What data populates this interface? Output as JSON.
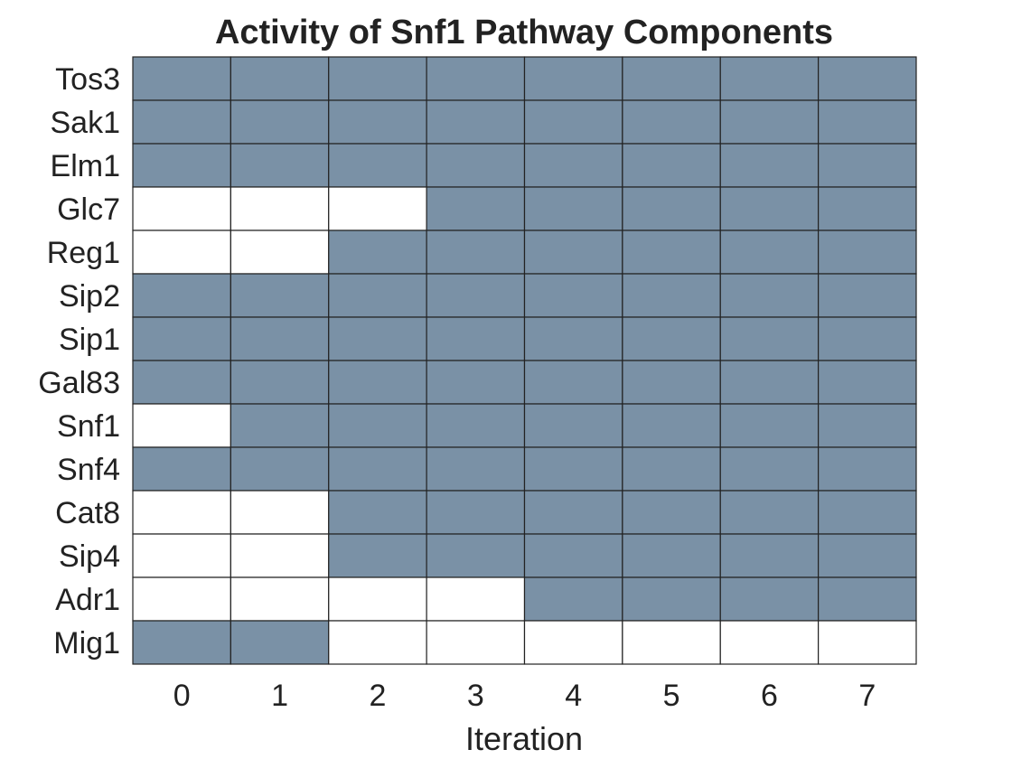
{
  "chart_data": {
    "type": "heatmap",
    "title": "Activity of Snf1 Pathway Components",
    "xlabel": "Iteration",
    "ylabel": "",
    "x": [
      "0",
      "1",
      "2",
      "3",
      "4",
      "5",
      "6",
      "7"
    ],
    "rows": [
      "Tos3",
      "Sak1",
      "Elm1",
      "Glc7",
      "Reg1",
      "Sip2",
      "Sip1",
      "Gal83",
      "Snf1",
      "Snf4",
      "Cat8",
      "Sip4",
      "Adr1",
      "Mig1"
    ],
    "values": [
      [
        1,
        1,
        1,
        1,
        1,
        1,
        1,
        1
      ],
      [
        1,
        1,
        1,
        1,
        1,
        1,
        1,
        1
      ],
      [
        1,
        1,
        1,
        1,
        1,
        1,
        1,
        1
      ],
      [
        0,
        0,
        0,
        1,
        1,
        1,
        1,
        1
      ],
      [
        0,
        0,
        1,
        1,
        1,
        1,
        1,
        1
      ],
      [
        1,
        1,
        1,
        1,
        1,
        1,
        1,
        1
      ],
      [
        1,
        1,
        1,
        1,
        1,
        1,
        1,
        1
      ],
      [
        1,
        1,
        1,
        1,
        1,
        1,
        1,
        1
      ],
      [
        0,
        1,
        1,
        1,
        1,
        1,
        1,
        1
      ],
      [
        1,
        1,
        1,
        1,
        1,
        1,
        1,
        1
      ],
      [
        0,
        0,
        1,
        1,
        1,
        1,
        1,
        1
      ],
      [
        0,
        0,
        1,
        1,
        1,
        1,
        1,
        1
      ],
      [
        0,
        0,
        0,
        0,
        1,
        1,
        1,
        1
      ],
      [
        1,
        1,
        0,
        0,
        0,
        0,
        0,
        0
      ]
    ],
    "colors": {
      "active": "#7a91a6",
      "inactive": "#ffffff",
      "grid": "#222222"
    },
    "grid": true
  }
}
